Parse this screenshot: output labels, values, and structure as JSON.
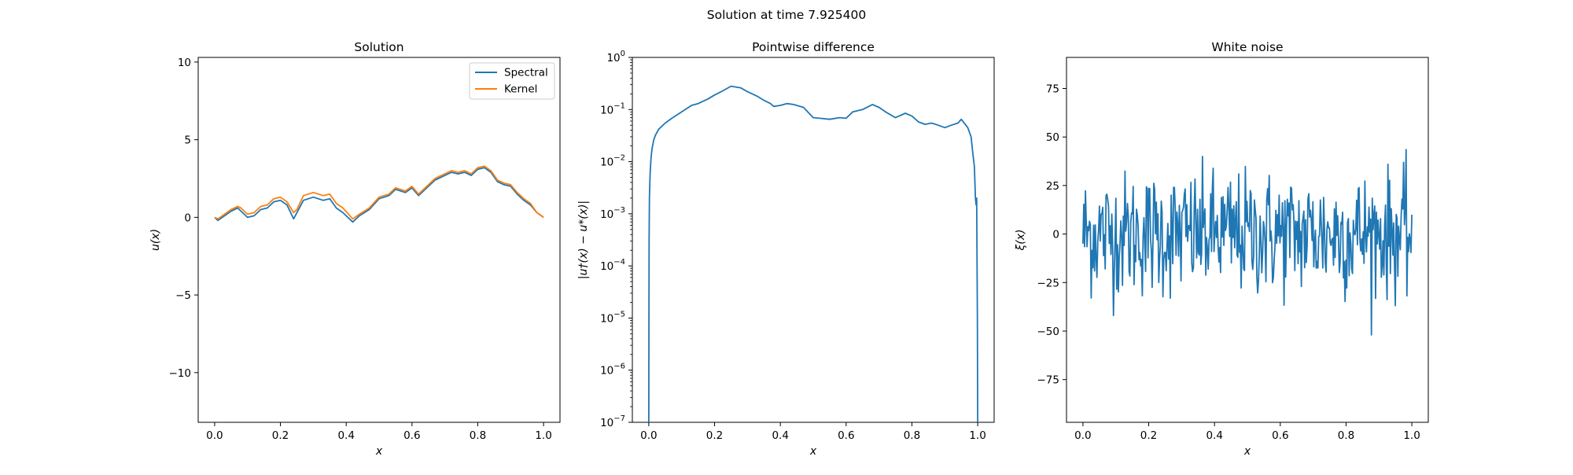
{
  "figure": {
    "suptitle": "Solution at time 7.925400"
  },
  "chart_data": [
    {
      "type": "line",
      "title": "Solution",
      "xlabel": "x",
      "ylabel": "u(x)",
      "xlim": [
        -0.05,
        1.05
      ],
      "ylim": [
        -13.2,
        10.3
      ],
      "xticks": [
        0.0,
        0.2,
        0.4,
        0.6,
        0.8,
        1.0
      ],
      "xtick_labels": [
        "0.0",
        "0.2",
        "0.4",
        "0.6",
        "0.8",
        "1.0"
      ],
      "yticks": [
        -10,
        -5,
        0,
        5,
        10
      ],
      "ytick_labels": [
        "−10",
        "−5",
        "0",
        "5",
        "10"
      ],
      "grid": false,
      "legend": "top-right",
      "series": [
        {
          "name": "Spectral",
          "color": "#1f77b4",
          "x": [
            0.0,
            0.01,
            0.03,
            0.05,
            0.07,
            0.08,
            0.1,
            0.12,
            0.14,
            0.16,
            0.18,
            0.2,
            0.22,
            0.24,
            0.25,
            0.27,
            0.3,
            0.33,
            0.35,
            0.37,
            0.39,
            0.42,
            0.44,
            0.47,
            0.5,
            0.53,
            0.55,
            0.58,
            0.6,
            0.62,
            0.64,
            0.67,
            0.7,
            0.72,
            0.74,
            0.76,
            0.78,
            0.8,
            0.82,
            0.84,
            0.86,
            0.88,
            0.9,
            0.92,
            0.94,
            0.96,
            0.98,
            1.0
          ],
          "y": [
            0.0,
            -0.2,
            0.1,
            0.4,
            0.6,
            0.4,
            0.0,
            0.1,
            0.5,
            0.6,
            1.0,
            1.1,
            0.8,
            -0.1,
            0.3,
            1.1,
            1.3,
            1.1,
            1.2,
            0.6,
            0.3,
            -0.3,
            0.1,
            0.5,
            1.2,
            1.4,
            1.8,
            1.6,
            1.9,
            1.4,
            1.8,
            2.4,
            2.7,
            2.9,
            2.8,
            2.9,
            2.7,
            3.1,
            3.2,
            2.9,
            2.3,
            2.1,
            2.0,
            1.5,
            1.1,
            0.8,
            0.3,
            0.0
          ]
        },
        {
          "name": "Kernel",
          "color": "#ff7f0e",
          "x": [
            0.0,
            0.01,
            0.03,
            0.05,
            0.07,
            0.08,
            0.1,
            0.12,
            0.14,
            0.16,
            0.18,
            0.2,
            0.22,
            0.24,
            0.25,
            0.27,
            0.3,
            0.33,
            0.35,
            0.37,
            0.39,
            0.42,
            0.44,
            0.47,
            0.5,
            0.53,
            0.55,
            0.58,
            0.6,
            0.62,
            0.64,
            0.67,
            0.7,
            0.72,
            0.74,
            0.76,
            0.78,
            0.8,
            0.82,
            0.84,
            0.86,
            0.88,
            0.9,
            0.92,
            0.94,
            0.96,
            0.98,
            1.0
          ],
          "y": [
            0.0,
            -0.1,
            0.2,
            0.5,
            0.7,
            0.6,
            0.2,
            0.3,
            0.7,
            0.8,
            1.2,
            1.3,
            1.0,
            0.3,
            0.5,
            1.4,
            1.6,
            1.4,
            1.5,
            0.9,
            0.6,
            -0.1,
            0.2,
            0.6,
            1.3,
            1.5,
            1.9,
            1.7,
            2.0,
            1.5,
            1.9,
            2.5,
            2.8,
            3.0,
            2.9,
            3.0,
            2.8,
            3.2,
            3.3,
            3.0,
            2.4,
            2.2,
            2.1,
            1.6,
            1.2,
            0.9,
            0.3,
            0.0
          ]
        }
      ]
    },
    {
      "type": "line",
      "title": "Pointwise difference",
      "xlabel": "x",
      "ylabel": "|u†(x) − u*(x)|",
      "yscale": "log",
      "xlim": [
        -0.05,
        1.05
      ],
      "ylim": [
        1e-07,
        1.0
      ],
      "xticks": [
        0.0,
        0.2,
        0.4,
        0.6,
        0.8,
        1.0
      ],
      "xtick_labels": [
        "0.0",
        "0.2",
        "0.4",
        "0.6",
        "0.8",
        "1.0"
      ],
      "ytick_labels": [
        {
          "base": "10",
          "exp": "−7"
        },
        {
          "base": "10",
          "exp": "−6"
        },
        {
          "base": "10",
          "exp": "−5"
        },
        {
          "base": "10",
          "exp": "−4"
        },
        {
          "base": "10",
          "exp": "−3"
        },
        {
          "base": "10",
          "exp": "−2"
        },
        {
          "base": "10",
          "exp": "−1"
        },
        {
          "base": "10",
          "exp": "0"
        }
      ],
      "grid": false,
      "series": [
        {
          "color": "#1f77b4",
          "x": [
            0.0,
            0.0005,
            0.001,
            0.002,
            0.004,
            0.007,
            0.01,
            0.015,
            0.02,
            0.03,
            0.05,
            0.07,
            0.1,
            0.13,
            0.15,
            0.18,
            0.2,
            0.22,
            0.25,
            0.28,
            0.3,
            0.33,
            0.35,
            0.37,
            0.38,
            0.4,
            0.42,
            0.44,
            0.47,
            0.5,
            0.52,
            0.55,
            0.58,
            0.6,
            0.62,
            0.65,
            0.68,
            0.7,
            0.72,
            0.75,
            0.78,
            0.8,
            0.82,
            0.84,
            0.86,
            0.88,
            0.9,
            0.92,
            0.94,
            0.95,
            0.97,
            0.98,
            0.985,
            0.99,
            0.993,
            0.995,
            0.997,
            0.998,
            0.999,
            1.0
          ],
          "y": [
            1e-07,
            1e-05,
            0.0003,
            0.002,
            0.006,
            0.012,
            0.018,
            0.026,
            0.032,
            0.042,
            0.055,
            0.068,
            0.09,
            0.12,
            0.13,
            0.16,
            0.19,
            0.22,
            0.28,
            0.26,
            0.22,
            0.18,
            0.15,
            0.13,
            0.115,
            0.12,
            0.13,
            0.125,
            0.11,
            0.07,
            0.068,
            0.065,
            0.07,
            0.068,
            0.09,
            0.1,
            0.125,
            0.11,
            0.09,
            0.07,
            0.085,
            0.075,
            0.058,
            0.052,
            0.055,
            0.05,
            0.045,
            0.05,
            0.055,
            0.065,
            0.045,
            0.03,
            0.015,
            0.008,
            0.002,
            0.0015,
            0.002,
            0.0001,
            1e-05,
            1e-07
          ]
        }
      ]
    },
    {
      "type": "line",
      "title": "White noise",
      "xlabel": "x",
      "ylabel": "ξ(x)",
      "xlim": [
        -0.05,
        1.05
      ],
      "ylim": [
        -97,
        91
      ],
      "xticks": [
        0.0,
        0.2,
        0.4,
        0.6,
        0.8,
        1.0
      ],
      "xtick_labels": [
        "0.0",
        "0.2",
        "0.4",
        "0.6",
        "0.8",
        "1.0"
      ],
      "yticks": [
        -75,
        -50,
        -25,
        0,
        25,
        50,
        75
      ],
      "ytick_labels": [
        "−75",
        "−50",
        "−25",
        "0",
        "25",
        "50",
        "75"
      ],
      "grid": false,
      "series": [
        {
          "color": "#1f77b4",
          "n_points": 400,
          "amplitude": 16
        }
      ]
    }
  ]
}
